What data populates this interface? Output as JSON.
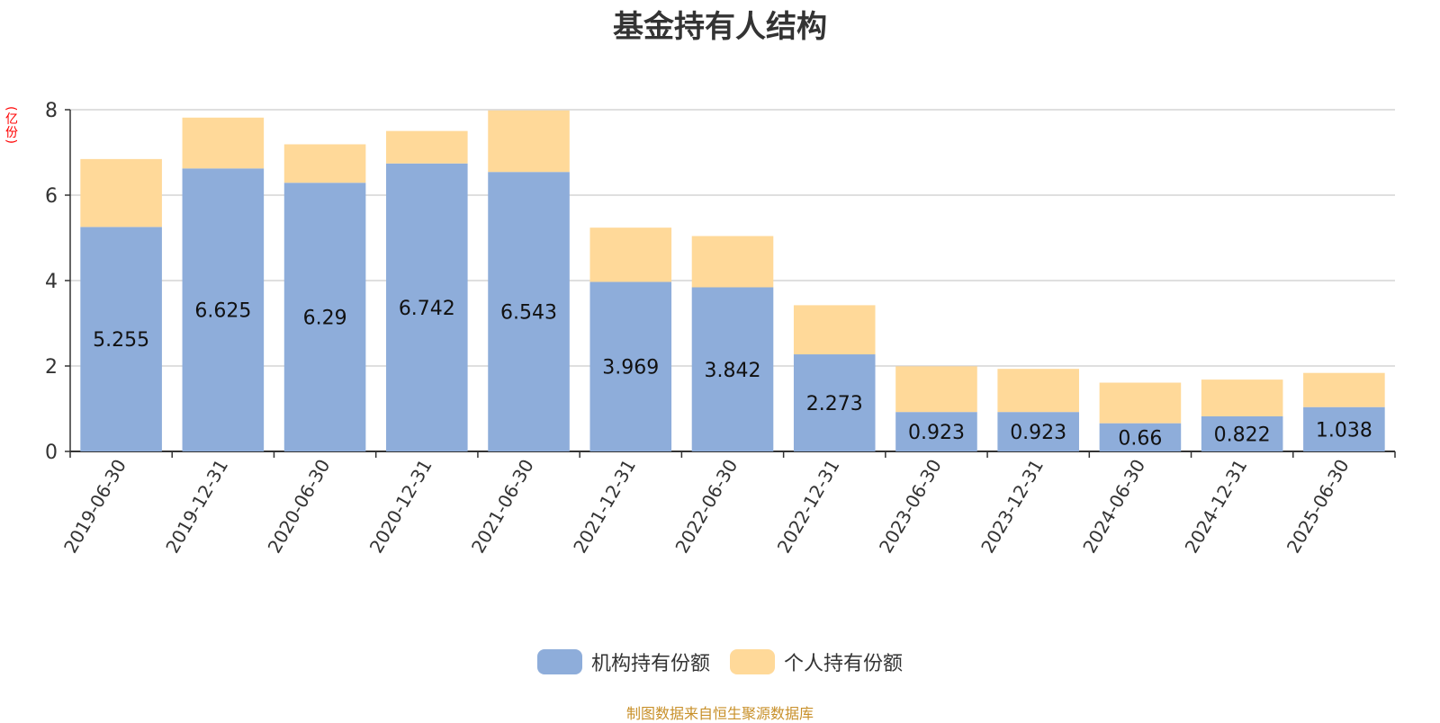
{
  "colors": {
    "institutional": "#8eadda",
    "individual": "#ffd999",
    "axis": "#333333",
    "grid": "#cccccc",
    "unit": "#ff0000",
    "source": "#c8902a"
  },
  "chart_data": {
    "type": "bar",
    "stacked": true,
    "title": "基金持有人结构",
    "y_unit": "(亿份)",
    "ylim": [
      0,
      8
    ],
    "yticks": [
      0,
      2,
      4,
      6,
      8
    ],
    "grid": true,
    "legend_position": "bottom",
    "categories": [
      "2019-06-30",
      "2019-12-31",
      "2020-06-30",
      "2020-12-31",
      "2021-06-30",
      "2021-12-31",
      "2022-06-30",
      "2022-12-31",
      "2023-06-30",
      "2023-12-31",
      "2024-06-30",
      "2024-12-31",
      "2025-06-30"
    ],
    "series": [
      {
        "name": "机构持有份额",
        "color_key": "institutional",
        "values": [
          5.255,
          6.625,
          6.29,
          6.742,
          6.543,
          3.969,
          3.842,
          2.273,
          0.923,
          0.923,
          0.66,
          0.822,
          1.038
        ],
        "labels": [
          "5.255",
          "6.625",
          "6.29",
          "6.742",
          "6.543",
          "3.969",
          "3.842",
          "2.273",
          "0.923",
          "0.923",
          "0.66",
          "0.822",
          "1.038"
        ]
      },
      {
        "name": "个人持有份额",
        "color_key": "individual",
        "values": [
          1.59,
          1.19,
          0.9,
          0.76,
          1.44,
          1.27,
          1.2,
          1.15,
          1.07,
          1.01,
          0.95,
          0.86,
          0.8
        ]
      }
    ]
  },
  "legend": {
    "institutional_label": "机构持有份额",
    "individual_label": "个人持有份额"
  },
  "source_note": "制图数据来自恒生聚源数据库"
}
